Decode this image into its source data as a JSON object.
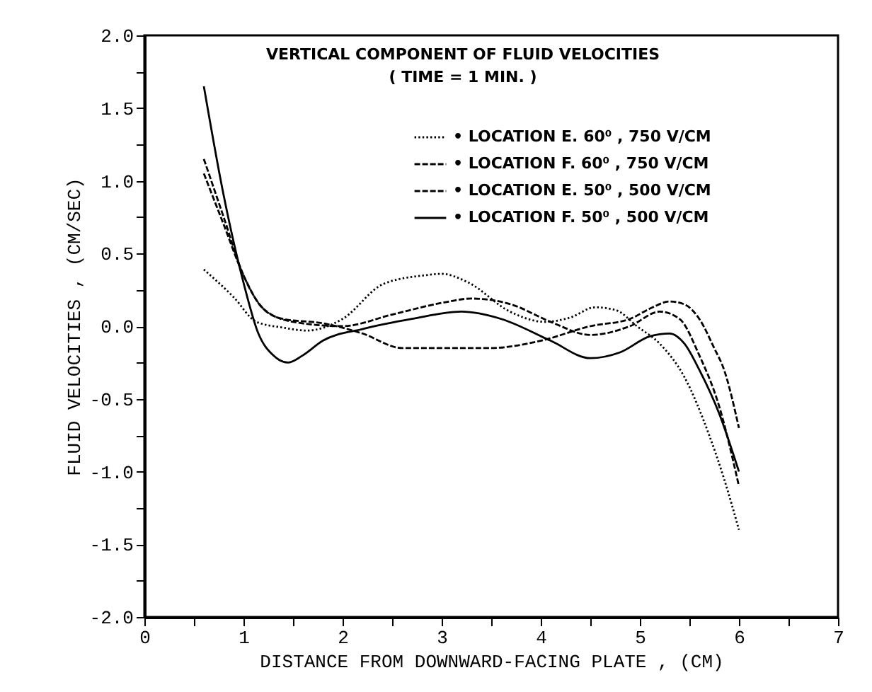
{
  "chart_data": {
    "type": "line",
    "title": "VERTICAL COMPONENT OF FLUID VELOCITIES",
    "subtitle": "( TIME = 1 MIN. )",
    "xlabel": "DISTANCE FROM DOWNWARD-FACING PLATE , (CM)",
    "ylabel": "FLUID VELOCITIES , (CM/SEC)",
    "xlim": [
      0,
      7
    ],
    "ylim": [
      -2,
      2
    ],
    "xticks": [
      0,
      {
        "value": 0.5,
        "label": null
      },
      1,
      {
        "value": 1.5,
        "label": null
      },
      2,
      {
        "value": 2.5,
        "label": null
      },
      3,
      {
        "value": 3.5,
        "label": null
      },
      4,
      {
        "value": 4.5,
        "label": null
      },
      5,
      {
        "value": 5.5,
        "label": null
      },
      6,
      {
        "value": 6.5,
        "label": null
      },
      7
    ],
    "yticks": [
      {
        "value": -2,
        "label": "-2.0"
      },
      {
        "value": -1.75,
        "label": null
      },
      {
        "value": -1.5,
        "label": "-1.5"
      },
      {
        "value": -1.25,
        "label": null
      },
      {
        "value": -1,
        "label": "-1.0"
      },
      {
        "value": -0.75,
        "label": null
      },
      {
        "value": -0.5,
        "label": "-0.5"
      },
      {
        "value": -0.25,
        "label": null
      },
      {
        "value": 0,
        "label": "0.0"
      },
      {
        "value": 0.25,
        "label": null
      },
      {
        "value": 0.5,
        "label": "0.5"
      },
      {
        "value": 0.75,
        "label": null
      },
      {
        "value": 1,
        "label": "1.0"
      },
      {
        "value": 1.25,
        "label": null
      },
      {
        "value": 1.5,
        "label": "1.5"
      },
      {
        "value": 1.75,
        "label": null
      },
      {
        "value": 2,
        "label": "2.0"
      }
    ],
    "legend": "top right",
    "grid": false,
    "marker": "none",
    "series": [
      {
        "name": "• LOCATION E. 60⁰ , 750 V/CM",
        "color": "#000000",
        "line_style": "dotted",
        "x": [
          0.6,
          0.9,
          1.13,
          1.4,
          1.64,
          2.0,
          2.41,
          2.83,
          3.0,
          3.27,
          3.69,
          4.04,
          4.3,
          4.55,
          4.76,
          4.97,
          5.2,
          5.45,
          5.7,
          5.85,
          6.0
        ],
        "values": [
          0.39,
          0.2,
          0.03,
          -0.01,
          -0.03,
          0.05,
          0.29,
          0.35,
          0.36,
          0.3,
          0.1,
          0.03,
          0.06,
          0.13,
          0.11,
          0.0,
          -0.12,
          -0.35,
          -0.75,
          -1.05,
          -1.4
        ]
      },
      {
        "name": "• LOCATION F. 60⁰ , 750 V/CM",
        "color": "#000000",
        "line_style": "dashed",
        "x": [
          0.6,
          0.8,
          1.0,
          1.2,
          1.4,
          1.8,
          2.2,
          2.6,
          3.0,
          3.5,
          4.0,
          4.5,
          4.9,
          5.1,
          5.3,
          5.45,
          5.6,
          5.75,
          5.85,
          6.0
        ],
        "values": [
          1.15,
          0.75,
          0.35,
          0.12,
          0.05,
          0.02,
          -0.05,
          -0.15,
          -0.15,
          -0.15,
          -0.1,
          0.0,
          0.05,
          0.12,
          0.17,
          0.15,
          0.05,
          -0.15,
          -0.3,
          -0.7
        ]
      },
      {
        "name": "• LOCATION E. 50⁰ , 500 V/CM",
        "color": "#000000",
        "line_style": "dashed",
        "x": [
          0.6,
          0.8,
          1.0,
          1.2,
          1.5,
          2.0,
          2.5,
          3.0,
          3.3,
          3.7,
          4.1,
          4.5,
          4.9,
          5.2,
          5.4,
          5.6,
          5.8,
          6.0
        ],
        "values": [
          1.05,
          0.7,
          0.35,
          0.12,
          0.03,
          0.0,
          0.08,
          0.16,
          0.19,
          0.15,
          0.03,
          -0.06,
          0.0,
          0.1,
          0.05,
          -0.2,
          -0.55,
          -1.1
        ]
      },
      {
        "name": "• LOCATION F. 50⁰ , 500 V/CM",
        "color": "#000000",
        "line_style": "solid",
        "x": [
          0.6,
          0.8,
          1.0,
          1.15,
          1.3,
          1.45,
          1.6,
          1.8,
          2.2,
          2.7,
          3.2,
          3.6,
          4.1,
          4.5,
          4.8,
          5.1,
          5.3,
          5.45,
          5.6,
          5.8,
          6.0
        ],
        "values": [
          1.65,
          0.9,
          0.3,
          -0.05,
          -0.2,
          -0.25,
          -0.2,
          -0.1,
          -0.02,
          0.05,
          0.1,
          0.05,
          -0.1,
          -0.22,
          -0.18,
          -0.07,
          -0.05,
          -0.12,
          -0.3,
          -0.6,
          -1.0
        ]
      }
    ]
  }
}
